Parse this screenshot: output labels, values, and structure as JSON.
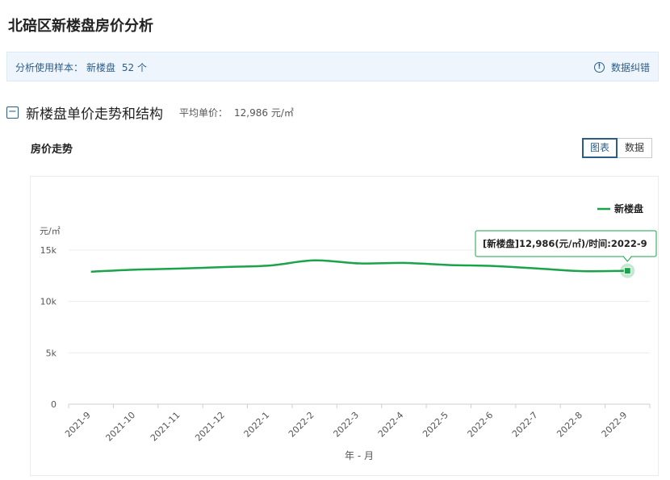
{
  "page": {
    "title": "北碚区新楼盘房价分析"
  },
  "sample": {
    "label": "分析使用样本：",
    "type": "新楼盘",
    "count": "52 个",
    "correction_label": "数据纠错",
    "correction_icon": "info-icon"
  },
  "section": {
    "collapse_symbol": "−",
    "title": "新楼盘单价走势和结构",
    "avg_label": "平均单价：",
    "avg_value": "12,986 元/㎡"
  },
  "chart_panel": {
    "title": "房价走势",
    "tabs": [
      {
        "label": "图表",
        "active": true
      },
      {
        "label": "数据",
        "active": false
      }
    ]
  },
  "tooltip": {
    "text": "[新楼盘]12,986(元/㎡)/时间:2022-9"
  },
  "chart_data": {
    "type": "line",
    "title": "",
    "xlabel": "年 - 月",
    "ylabel": "元/㎡",
    "ylim": [
      0,
      15000
    ],
    "yticks": [
      0,
      5000,
      10000,
      15000
    ],
    "ytick_labels": [
      "0",
      "5k",
      "10k",
      "15k"
    ],
    "categories": [
      "2021-9",
      "2021-10",
      "2021-11",
      "2021-12",
      "2022-1",
      "2022-2",
      "2022-3",
      "2022-4",
      "2022-5",
      "2022-6",
      "2022-7",
      "2022-8",
      "2022-9"
    ],
    "series": [
      {
        "name": "新楼盘",
        "color": "#1aa34a",
        "values": [
          12900,
          13100,
          13200,
          13350,
          13500,
          14000,
          13700,
          13750,
          13550,
          13450,
          13200,
          12950,
          12986
        ]
      }
    ],
    "legend": "top-right",
    "grid": true,
    "highlight_index": 12
  }
}
